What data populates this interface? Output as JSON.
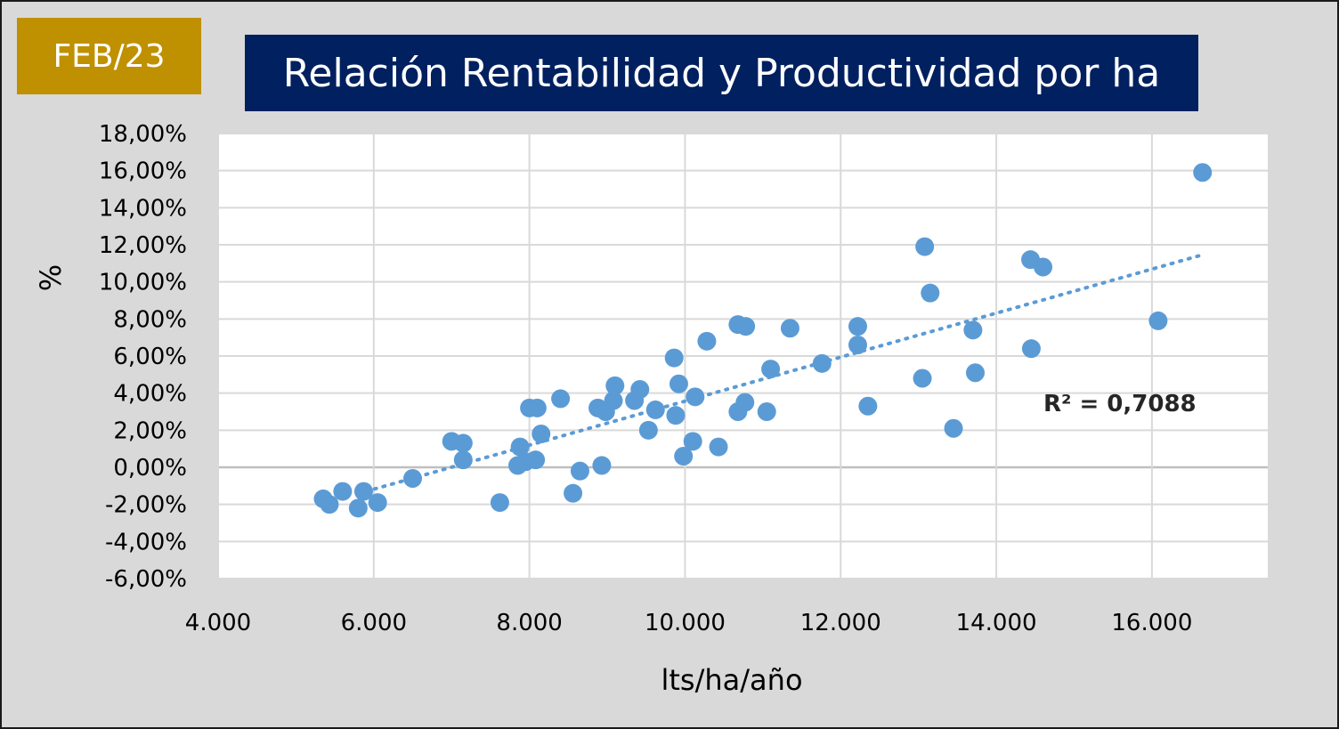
{
  "badge": {
    "text": "FEB/23",
    "color": "#bf9000"
  },
  "header": {
    "title": "Relación Rentabilidad y Productividad por ha",
    "color": "#002060"
  },
  "chart_data": {
    "type": "scatter",
    "title": "Relación Rentabilidad y Productividad por ha",
    "xlabel": "lts/ha/año",
    "ylabel": "%",
    "xlim": [
      4000,
      17500
    ],
    "ylim": [
      -6,
      18
    ],
    "x_ticks": [
      4000,
      6000,
      8000,
      10000,
      12000,
      14000,
      16000
    ],
    "y_ticks": [
      -6,
      -4,
      -2,
      0,
      2,
      4,
      6,
      8,
      10,
      12,
      14,
      16,
      18
    ],
    "x_tick_labels": [
      "4.000",
      "6.000",
      "8.000",
      "10.000",
      "12.000",
      "14.000",
      "16.000"
    ],
    "y_tick_labels": [
      "-6,00%",
      "-4,00%",
      "-2,00%",
      "0,00%",
      "2,00%",
      "4,00%",
      "6,00%",
      "8,00%",
      "10,00%",
      "12,00%",
      "14,00%",
      "16,00%",
      "18,00%"
    ],
    "grid": true,
    "point_color": "#5b9bd5",
    "trendline": {
      "type": "linear",
      "r_squared_label": "R² = 0,7088",
      "x_range": [
        5900,
        16600
      ],
      "y_range": [
        -1.3,
        11.4
      ],
      "color": "#5b9bd5"
    },
    "series": [
      {
        "points": [
          [
            5350,
            -1.7
          ],
          [
            5430,
            -2.0
          ],
          [
            5600,
            -1.3
          ],
          [
            5800,
            -2.2
          ],
          [
            5870,
            -1.3
          ],
          [
            6050,
            -1.9
          ],
          [
            6500,
            -0.6
          ],
          [
            7000,
            1.4
          ],
          [
            7150,
            1.3
          ],
          [
            7150,
            0.4
          ],
          [
            7620,
            -1.9
          ],
          [
            7850,
            0.1
          ],
          [
            7880,
            1.1
          ],
          [
            7950,
            0.3
          ],
          [
            8000,
            3.2
          ],
          [
            8100,
            3.2
          ],
          [
            8080,
            0.4
          ],
          [
            8150,
            1.8
          ],
          [
            8400,
            3.7
          ],
          [
            8560,
            -1.4
          ],
          [
            8650,
            -0.2
          ],
          [
            8880,
            3.2
          ],
          [
            8930,
            0.1
          ],
          [
            8980,
            3.0
          ],
          [
            9080,
            3.6
          ],
          [
            9100,
            4.4
          ],
          [
            9350,
            3.6
          ],
          [
            9420,
            4.2
          ],
          [
            9530,
            2.0
          ],
          [
            9620,
            3.1
          ],
          [
            9860,
            5.9
          ],
          [
            9880,
            2.8
          ],
          [
            9920,
            4.5
          ],
          [
            9980,
            0.6
          ],
          [
            10100,
            1.4
          ],
          [
            10130,
            3.8
          ],
          [
            10280,
            6.8
          ],
          [
            10430,
            1.1
          ],
          [
            10680,
            3.0
          ],
          [
            10680,
            7.7
          ],
          [
            10780,
            7.6
          ],
          [
            10770,
            3.5
          ],
          [
            11050,
            3.0
          ],
          [
            11100,
            5.3
          ],
          [
            11350,
            7.5
          ],
          [
            11760,
            5.6
          ],
          [
            12220,
            7.6
          ],
          [
            12220,
            6.6
          ],
          [
            12350,
            3.3
          ],
          [
            13050,
            4.8
          ],
          [
            13080,
            11.9
          ],
          [
            13150,
            9.4
          ],
          [
            13450,
            2.1
          ],
          [
            13700,
            7.4
          ],
          [
            13730,
            5.1
          ],
          [
            14440,
            11.2
          ],
          [
            14450,
            6.4
          ],
          [
            14600,
            10.8
          ],
          [
            16080,
            7.9
          ],
          [
            16650,
            15.9
          ]
        ]
      }
    ]
  }
}
